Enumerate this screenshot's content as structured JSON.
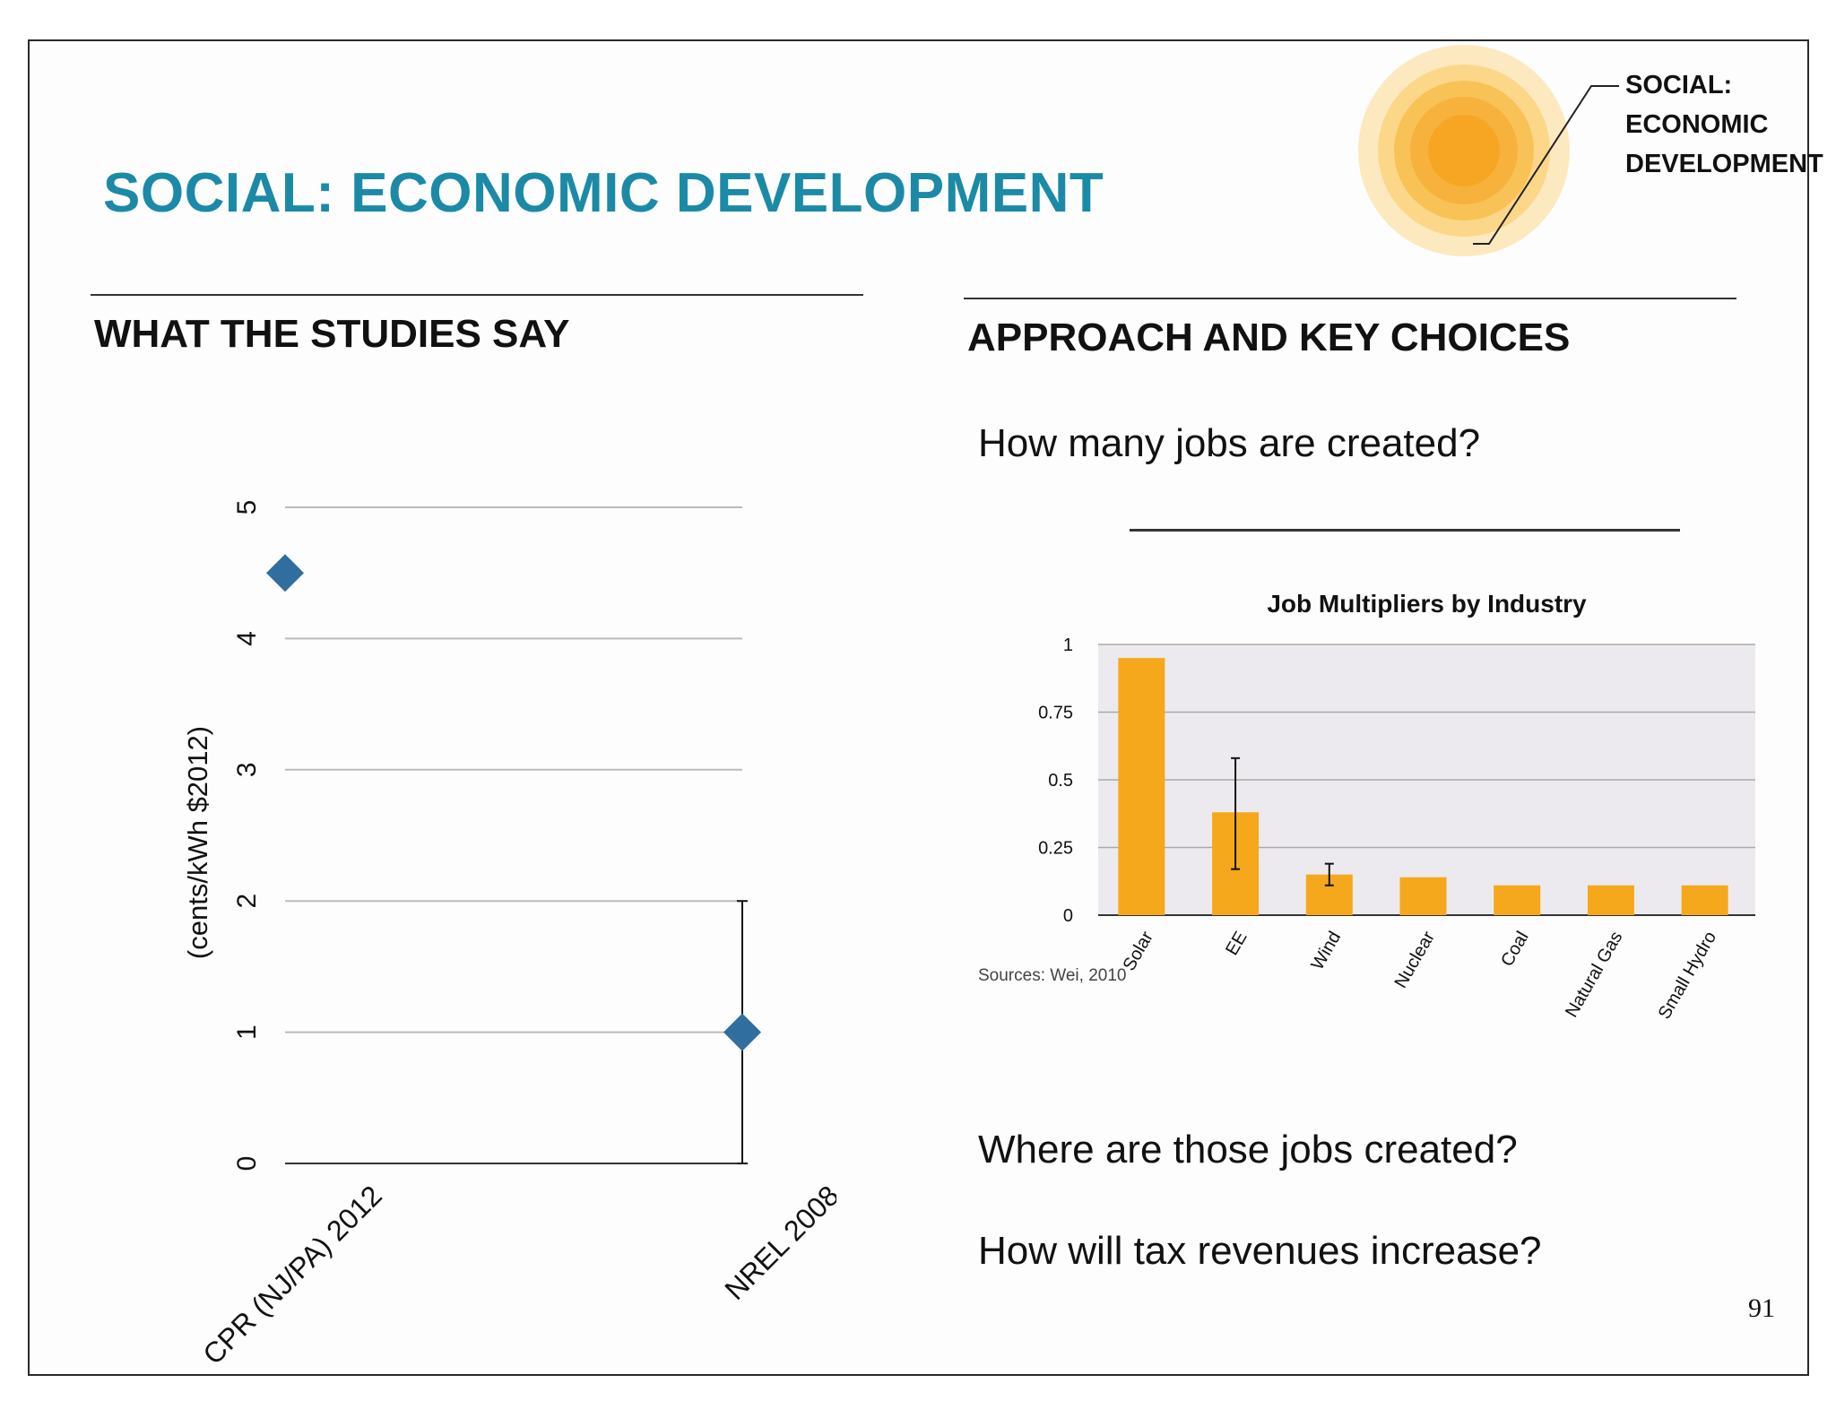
{
  "title": "SOCIAL: ECONOMIC DEVELOPMENT",
  "badge": {
    "lines": [
      "SOCIAL:",
      "ECONOMIC",
      "DEVELOPMENT"
    ],
    "colors": {
      "outer": "#fde9c0",
      "ring1": "#fcd78a",
      "ring2": "#f9c257",
      "core": "#f6a623"
    }
  },
  "left_section": {
    "heading": "WHAT THE STUDIES SAY"
  },
  "right_section": {
    "heading": "APPROACH AND KEY CHOICES",
    "question1": "How many jobs are created?",
    "question2": "Where are those jobs created?",
    "question3": "How will tax revenues increase?",
    "sources": "Sources: Wei, 2010"
  },
  "page_number": "91",
  "chart_data": [
    {
      "type": "scatter",
      "title": "",
      "xlabel": "",
      "ylabel": "(cents/kWh $2012)",
      "categories": [
        "CPR (NJ/PA) 2012",
        "NREL 2008"
      ],
      "series": [
        {
          "values": [
            4.5,
            1.0
          ],
          "error_low": [
            null,
            0
          ],
          "error_high": [
            null,
            2.0
          ]
        }
      ],
      "ylim": [
        0,
        5
      ],
      "yticks": [
        0,
        1,
        2,
        3,
        4,
        5
      ],
      "grid": true,
      "rotated": true,
      "color": "#2f6e9e"
    },
    {
      "type": "bar",
      "title": "Job Multipliers by Industry",
      "xlabel": "",
      "ylabel": "",
      "categories": [
        "Solar",
        "EE",
        "Wind",
        "Nuclear",
        "Coal",
        "Natural Gas",
        "Small Hydro"
      ],
      "values": [
        0.95,
        0.38,
        0.15,
        0.14,
        0.11,
        0.11,
        0.11
      ],
      "error_low": [
        null,
        0.17,
        0.11,
        null,
        null,
        null,
        null
      ],
      "error_high": [
        null,
        0.58,
        0.19,
        null,
        null,
        null,
        null
      ],
      "ylim": [
        0,
        1
      ],
      "yticks": [
        "0",
        "0.25",
        "0.5",
        "0.75",
        "1"
      ],
      "grid": true,
      "color": "#f5a81c",
      "background": "#eceaee"
    }
  ]
}
